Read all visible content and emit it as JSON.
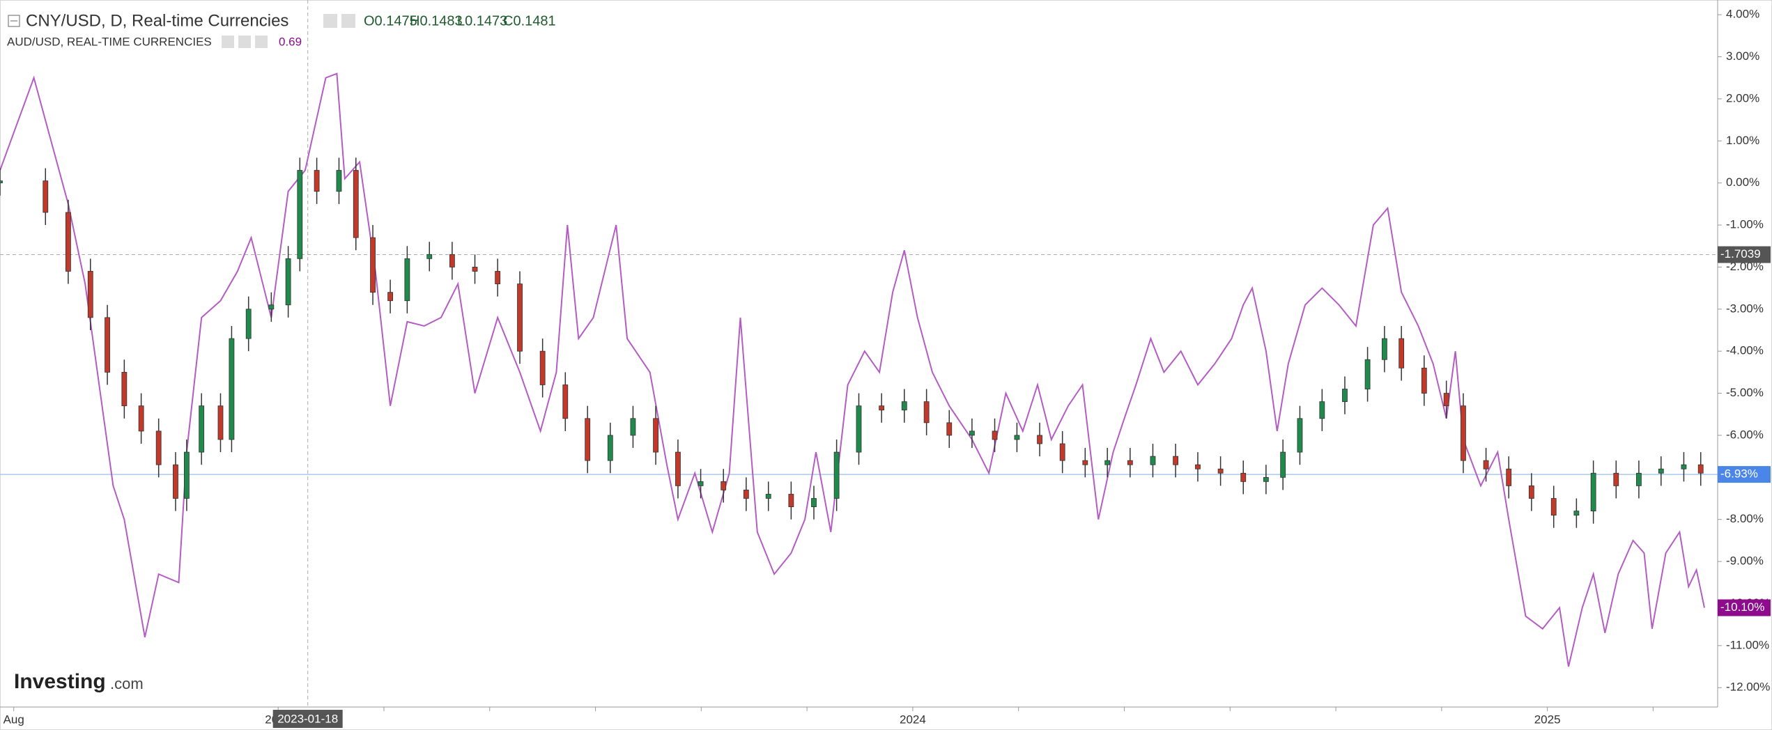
{
  "chart_data": {
    "type": "candlestick",
    "title": "CNY/USD, D, Real-time Currencies",
    "ohlc_labels": [
      "O0.1475",
      "H0.1483",
      "L0.1473",
      "C0.1481"
    ],
    "xlim": [
      -0.26,
      32.22
    ],
    "ylim": [
      -12.46,
      4.35
    ],
    "xticks": [
      {
        "value": 0,
        "label": "Aug"
      },
      {
        "value": 5,
        "label": "2023"
      },
      {
        "value": 17,
        "label": "2024"
      },
      {
        "value": 29,
        "label": "2025"
      }
    ],
    "xminor": [
      7,
      9,
      11,
      13,
      15,
      19,
      21,
      23,
      25,
      27,
      31
    ],
    "yticks": [
      {
        "value": 4,
        "label": "4.00%"
      },
      {
        "value": 3,
        "label": "3.00%"
      },
      {
        "value": 2,
        "label": "2.00%"
      },
      {
        "value": 1,
        "label": "1.00%"
      },
      {
        "value": 0,
        "label": "0.00%"
      },
      {
        "value": -1,
        "label": "-1.00%"
      },
      {
        "value": -2,
        "label": "-2.00%"
      },
      {
        "value": -3,
        "label": "-3.00%"
      },
      {
        "value": -4,
        "label": "-4.00%"
      },
      {
        "value": -5,
        "label": "-5.00%"
      },
      {
        "value": -6,
        "label": "-6.00%"
      },
      {
        "value": -7,
        "label": "-7.00%"
      },
      {
        "value": -8,
        "label": "-8.00%"
      },
      {
        "value": -9,
        "label": "-9.00%"
      },
      {
        "value": -10,
        "label": "-10.00%"
      },
      {
        "value": -11,
        "label": "-11.00%"
      },
      {
        "value": -12,
        "label": "-12.00%"
      }
    ],
    "series": [
      {
        "type": "candlestick",
        "up_color": "#1f8a4c",
        "down_color": "#c0392b",
        "x": [
          -0.26,
          0.6,
          1.03,
          1.45,
          1.77,
          2.09,
          2.41,
          2.74,
          3.06,
          3.27,
          3.55,
          3.91,
          4.12,
          4.44,
          4.87,
          5.19,
          5.41,
          5.73,
          6.15,
          6.47,
          6.79,
          7.12,
          7.44,
          7.86,
          8.29,
          8.72,
          9.15,
          9.57,
          10.0,
          10.43,
          10.85,
          11.28,
          11.71,
          12.14,
          12.56,
          12.99,
          13.42,
          13.85,
          14.27,
          14.7,
          15.13,
          15.56,
          15.98,
          16.41,
          16.84,
          17.26,
          17.69,
          18.12,
          18.55,
          18.97,
          19.4,
          19.83,
          20.26,
          20.68,
          21.11,
          21.54,
          21.97,
          22.39,
          22.82,
          23.25,
          23.68,
          24.0,
          24.32,
          24.74,
          25.17,
          25.6,
          25.92,
          26.24,
          26.67,
          27.09,
          27.41,
          27.84,
          28.27,
          28.7,
          29.12,
          29.55,
          29.87,
          30.3,
          30.73,
          31.15,
          31.58,
          31.9
        ],
        "open": [
          0.0,
          0.05,
          -0.7,
          -2.1,
          -3.2,
          -4.5,
          -5.3,
          -5.9,
          -6.7,
          -7.5,
          -6.4,
          -5.3,
          -6.1,
          -3.7,
          -3.0,
          -2.9,
          -1.8,
          0.3,
          -0.2,
          0.3,
          -1.3,
          -2.6,
          -2.8,
          -1.8,
          -1.7,
          -2.0,
          -2.1,
          -2.4,
          -4.0,
          -4.8,
          -5.6,
          -6.6,
          -6.0,
          -5.6,
          -6.4,
          -7.2,
          -7.1,
          -7.3,
          -7.5,
          -7.4,
          -7.7,
          -7.5,
          -6.4,
          -5.3,
          -5.4,
          -5.2,
          -5.7,
          -6.0,
          -5.9,
          -6.1,
          -6.0,
          -6.2,
          -6.6,
          -6.7,
          -6.6,
          -6.7,
          -6.5,
          -6.7,
          -6.8,
          -6.9,
          -7.1,
          -7.0,
          -6.4,
          -5.6,
          -5.2,
          -4.9,
          -4.2,
          -3.7,
          -4.4,
          -5.0,
          -5.3,
          -6.6,
          -6.8,
          -7.2,
          -7.5,
          -7.9,
          -7.8,
          -6.9,
          -7.2,
          -6.9,
          -6.8,
          -6.7
        ],
        "high": [
          0.35,
          0.35,
          -0.4,
          -1.8,
          -2.9,
          -4.2,
          -5.0,
          -5.6,
          -6.4,
          -6.1,
          -5.0,
          -5.0,
          -3.4,
          -2.7,
          -2.6,
          -1.5,
          0.6,
          0.6,
          0.6,
          0.6,
          -1.0,
          -2.3,
          -1.5,
          -1.4,
          -1.4,
          -1.7,
          -1.8,
          -2.1,
          -3.7,
          -4.5,
          -5.3,
          -5.7,
          -5.3,
          -5.3,
          -6.1,
          -6.8,
          -6.8,
          -7.0,
          -7.1,
          -7.1,
          -7.2,
          -6.1,
          -5.0,
          -5.0,
          -4.9,
          -4.9,
          -5.4,
          -5.6,
          -5.6,
          -5.7,
          -5.7,
          -5.9,
          -6.3,
          -6.3,
          -6.3,
          -6.2,
          -6.2,
          -6.4,
          -6.5,
          -6.6,
          -6.7,
          -6.1,
          -5.3,
          -4.9,
          -4.6,
          -3.9,
          -3.4,
          -3.4,
          -4.1,
          -4.7,
          -5.0,
          -6.3,
          -6.5,
          -6.9,
          -7.2,
          -7.5,
          -6.6,
          -6.6,
          -6.6,
          -6.5,
          -6.4,
          -6.4
        ],
        "low": [
          -0.3,
          -1.0,
          -2.4,
          -3.5,
          -4.8,
          -5.6,
          -6.2,
          -7.0,
          -7.8,
          -7.8,
          -6.7,
          -6.4,
          -6.4,
          -4.0,
          -3.3,
          -3.2,
          -2.1,
          -0.5,
          -0.5,
          -1.6,
          -2.9,
          -3.1,
          -3.1,
          -2.1,
          -2.3,
          -2.4,
          -2.7,
          -4.3,
          -5.1,
          -5.9,
          -6.9,
          -6.9,
          -6.3,
          -6.7,
          -7.5,
          -7.5,
          -7.6,
          -7.8,
          -7.8,
          -8.0,
          -8.0,
          -7.8,
          -6.7,
          -5.7,
          -5.7,
          -6.0,
          -6.3,
          -6.3,
          -6.4,
          -6.4,
          -6.5,
          -6.9,
          -7.0,
          -7.0,
          -7.0,
          -7.0,
          -7.0,
          -7.1,
          -7.2,
          -7.4,
          -7.4,
          -7.3,
          -6.7,
          -5.9,
          -5.5,
          -5.2,
          -4.5,
          -4.7,
          -5.3,
          -5.6,
          -6.9,
          -7.1,
          -7.5,
          -7.8,
          -8.2,
          -8.2,
          -8.1,
          -7.5,
          -7.5,
          -7.2,
          -7.1,
          -7.2
        ],
        "close": [
          0.05,
          -0.7,
          -2.1,
          -3.2,
          -4.5,
          -5.3,
          -5.9,
          -6.7,
          -7.5,
          -6.4,
          -5.3,
          -6.1,
          -3.7,
          -3.0,
          -2.9,
          -1.8,
          0.3,
          -0.2,
          0.3,
          -1.3,
          -2.6,
          -2.8,
          -1.8,
          -1.7,
          -2.0,
          -2.1,
          -2.4,
          -4.0,
          -4.8,
          -5.6,
          -6.6,
          -6.0,
          -5.6,
          -6.4,
          -7.2,
          -7.1,
          -7.3,
          -7.5,
          -7.4,
          -7.7,
          -7.5,
          -6.4,
          -5.3,
          -5.4,
          -5.2,
          -5.7,
          -6.0,
          -5.9,
          -6.1,
          -6.0,
          -6.2,
          -6.6,
          -6.7,
          -6.6,
          -6.7,
          -6.5,
          -6.7,
          -6.8,
          -6.9,
          -7.1,
          -7.0,
          -6.4,
          -5.6,
          -5.2,
          -4.9,
          -4.2,
          -3.7,
          -4.4,
          -5.0,
          -5.3,
          -6.6,
          -6.8,
          -7.2,
          -7.5,
          -7.9,
          -7.8,
          -6.9,
          -7.2,
          -6.9,
          -6.8,
          -6.7,
          -6.9
        ]
      },
      {
        "type": "line",
        "name": "AUD/USD, REAL-TIME CURRENCIES",
        "color": "#b45cc4",
        "last_value": "0.69",
        "x": [
          -0.26,
          0.38,
          1.03,
          1.35,
          1.88,
          2.09,
          2.48,
          2.74,
          3.12,
          3.27,
          3.55,
          3.91,
          4.23,
          4.49,
          4.87,
          5.19,
          5.51,
          5.9,
          6.11,
          6.26,
          6.54,
          6.84,
          7.12,
          7.44,
          7.76,
          8.08,
          8.4,
          8.72,
          9.15,
          9.57,
          9.96,
          10.26,
          10.47,
          10.68,
          10.96,
          11.39,
          11.6,
          12.03,
          12.35,
          12.56,
          12.88,
          13.21,
          13.53,
          13.74,
          14.06,
          14.38,
          14.7,
          14.96,
          15.17,
          15.45,
          15.77,
          16.09,
          16.37,
          16.62,
          16.84,
          17.09,
          17.37,
          17.69,
          18.12,
          18.44,
          18.76,
          19.08,
          19.36,
          19.62,
          19.94,
          20.21,
          20.51,
          20.79,
          21.0,
          21.22,
          21.5,
          21.75,
          22.07,
          22.39,
          22.71,
          23.03,
          23.25,
          23.42,
          23.68,
          23.89,
          24.1,
          24.42,
          24.74,
          25.06,
          25.38,
          25.71,
          25.98,
          26.24,
          26.56,
          26.84,
          27.09,
          27.26,
          27.41,
          27.74,
          28.06,
          28.27,
          28.59,
          28.91,
          29.23,
          29.4,
          29.66,
          29.87,
          30.09,
          30.34,
          30.62,
          30.83,
          30.98,
          31.24,
          31.5,
          31.67,
          31.82,
          31.97
        ],
        "values": [
          0.3,
          2.5,
          -0.5,
          -2.4,
          -7.2,
          -8.0,
          -10.8,
          -9.3,
          -9.5,
          -6.4,
          -3.2,
          -2.8,
          -2.1,
          -1.3,
          -3.2,
          -0.2,
          0.3,
          2.5,
          2.6,
          0.1,
          0.5,
          -2.1,
          -5.3,
          -3.3,
          -3.4,
          -3.2,
          -2.4,
          -5.0,
          -3.2,
          -4.5,
          -5.9,
          -4.5,
          -1.0,
          -3.7,
          -3.2,
          -1.0,
          -3.7,
          -4.5,
          -6.7,
          -8.0,
          -6.9,
          -8.3,
          -6.9,
          -3.2,
          -8.3,
          -9.3,
          -8.8,
          -8.0,
          -6.4,
          -8.3,
          -4.8,
          -4.0,
          -4.5,
          -2.6,
          -1.6,
          -3.2,
          -4.5,
          -5.3,
          -6.1,
          -6.9,
          -5.0,
          -5.9,
          -4.8,
          -6.1,
          -5.3,
          -4.8,
          -8.0,
          -6.4,
          -5.6,
          -4.8,
          -3.7,
          -4.5,
          -4.0,
          -4.8,
          -4.3,
          -3.7,
          -2.9,
          -2.5,
          -4.0,
          -5.9,
          -4.3,
          -2.9,
          -2.5,
          -2.9,
          -3.4,
          -1.0,
          -0.6,
          -2.6,
          -3.4,
          -4.3,
          -5.6,
          -4.0,
          -6.1,
          -7.2,
          -6.4,
          -8.0,
          -10.3,
          -10.6,
          -10.1,
          -11.5,
          -10.1,
          -9.3,
          -10.7,
          -9.3,
          -8.5,
          -8.8,
          -10.6,
          -8.8,
          -8.3,
          -9.6,
          -9.2,
          -10.1
        ]
      }
    ],
    "crosshair": {
      "x": {
        "value": 5.56,
        "label": "2023-01-18"
      },
      "y": {
        "value": -1.7039,
        "label": "-1.7039"
      }
    },
    "price_lines": [
      {
        "value": -6.93,
        "label": "-6.93%",
        "color": "#4a86e8",
        "line_color": "#a9c9ec"
      },
      {
        "value": -10.1,
        "label": "-10.10%",
        "color": "#8e0b8e"
      }
    ],
    "watermark": {
      "brand": "Investing",
      "suffix": ".com"
    }
  }
}
